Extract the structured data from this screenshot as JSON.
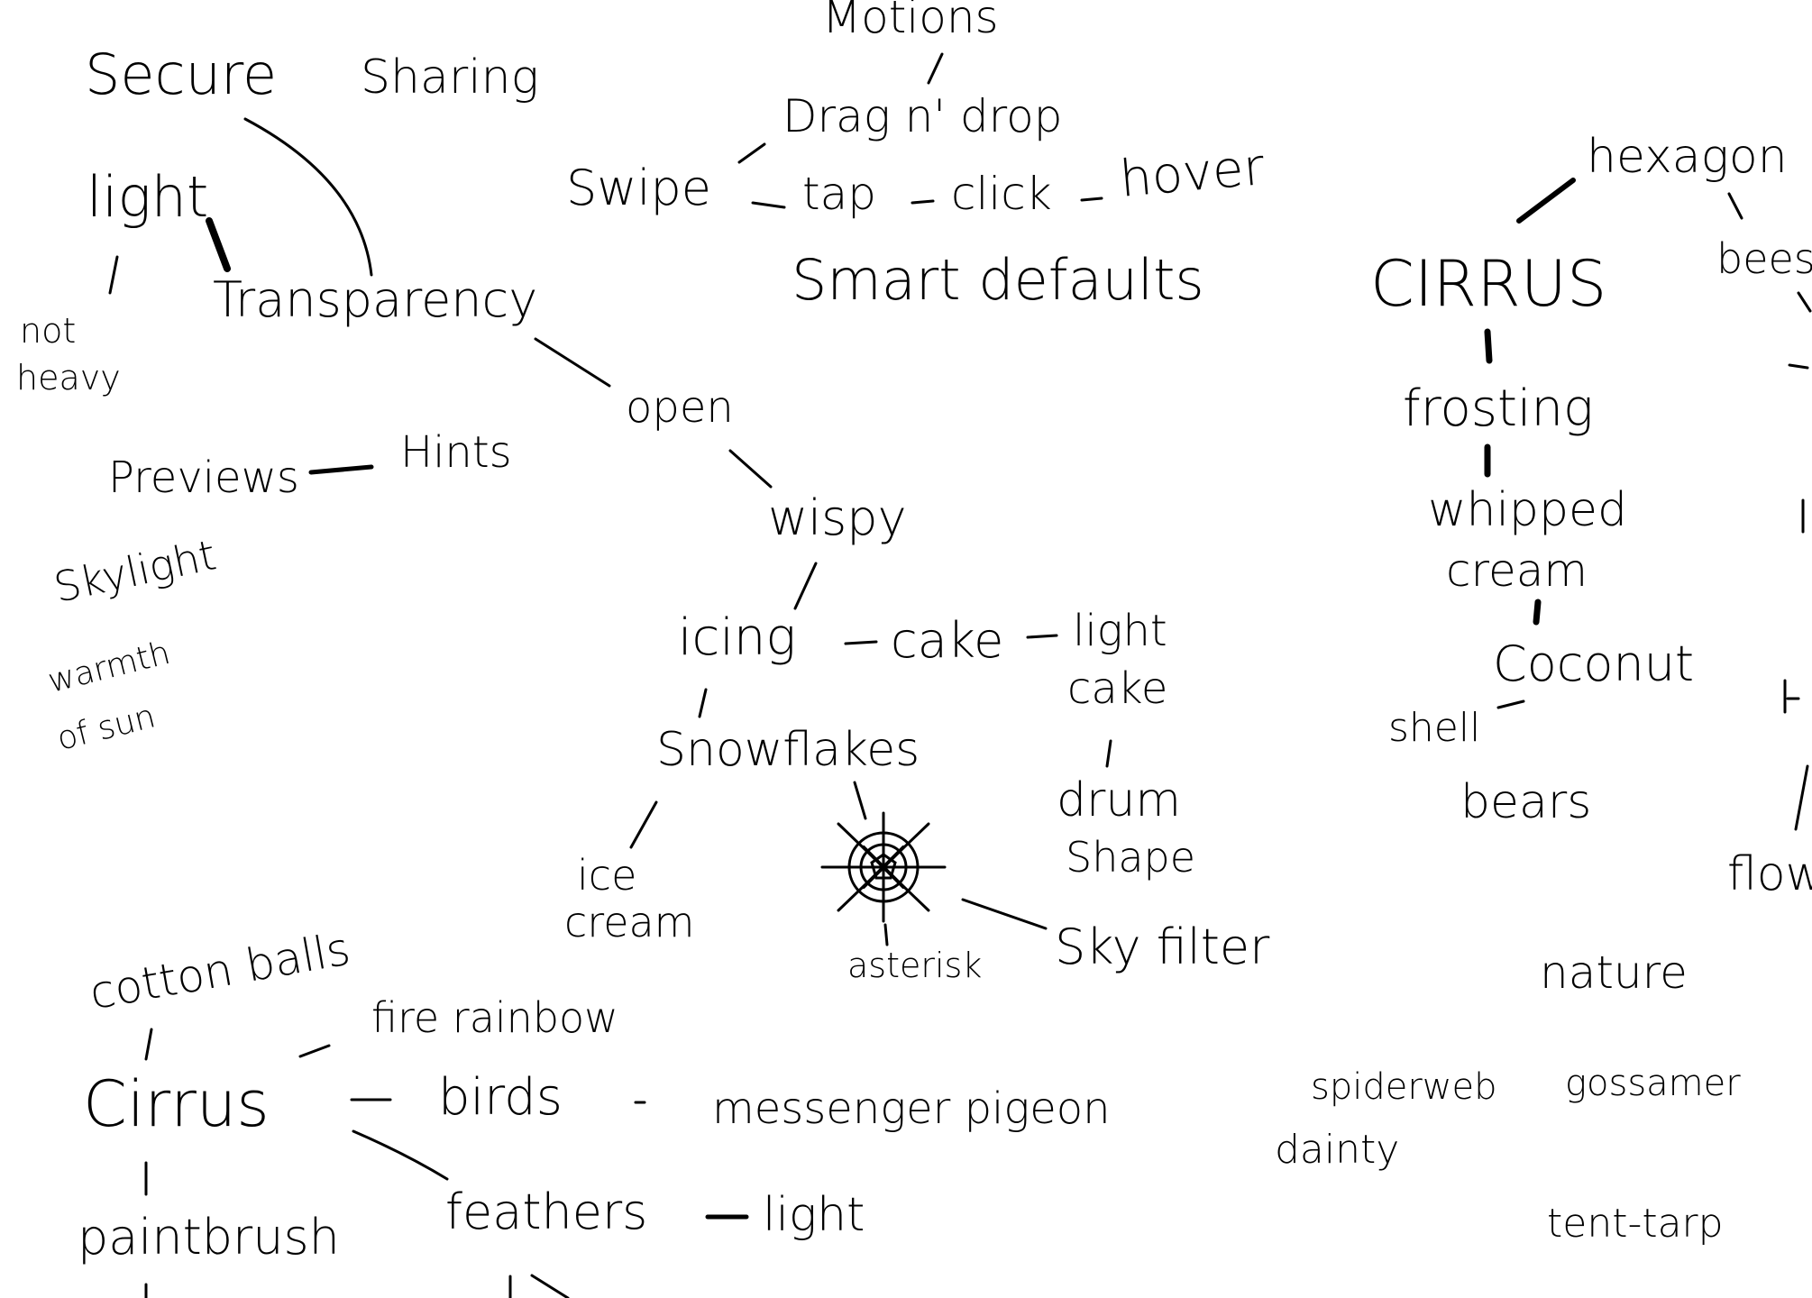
{
  "words": {
    "motions": "Motions",
    "secure": "Secure",
    "sharing": "Sharing",
    "drag_n_drop": "Drag n' drop",
    "swipe": "Swipe",
    "tap": "tap",
    "click": "click",
    "hover": "hover",
    "smart_defaults": "Smart defaults",
    "light_top": "light",
    "transparency": "Transparency",
    "not_heavy_1": "not",
    "not_heavy_2": "heavy",
    "open": "open",
    "previews": "Previews",
    "hints": "Hints",
    "wispy": "wispy",
    "skylight": "Skylight",
    "warmth_1": "warmth",
    "warmth_2": "of sun",
    "icing": "icing",
    "cake": "cake",
    "light_cake_1": "light",
    "light_cake_2": "cake",
    "snowflakes": "Snowflakes",
    "drum_shape_1": "drum",
    "drum_shape_2": "Shape",
    "ice_cream_1": "ice",
    "ice_cream_2": "cream",
    "asterisk": "asterisk",
    "sky_filter": "Sky filter",
    "cotton_balls": "cotton balls",
    "fire_rainbow": "fire rainbow",
    "cirrus_left": "Cirrus",
    "birds": "birds",
    "messenger_pigeon": "messenger pigeon",
    "feathers": "feathers",
    "light_bottom": "light",
    "paintbrush": "paintbrush",
    "hexagon": "hexagon",
    "cirrus_right": "CIRRUS",
    "bees": "bees",
    "frosting": "frosting",
    "whipped_1": "whipped",
    "whipped_2": "cream",
    "coconut": "Coconut",
    "shell": "shell",
    "bears": "bears",
    "flow": "flow",
    "nature": "nature",
    "spiderweb": "spiderweb",
    "gossamer": "gossamer",
    "dainty": "dainty",
    "tent_tarp": "tent-tarp"
  }
}
